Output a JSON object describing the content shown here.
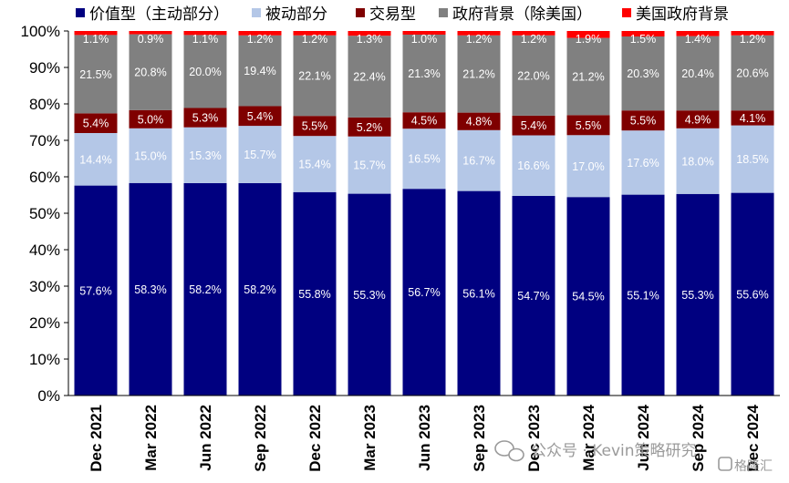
{
  "chart_data": {
    "type": "bar",
    "stacked": true,
    "categories": [
      "Dec 2021",
      "Mar 2022",
      "Jun 2022",
      "Sep 2022",
      "Dec 2022",
      "Mar 2023",
      "Jun 2023",
      "Sep 2023",
      "Dec 2023",
      "Mar 2024",
      "Jun 2024",
      "Sep 2024",
      "Dec 2024"
    ],
    "ylim": [
      0,
      100
    ],
    "yticks": [
      "0%",
      "10%",
      "20%",
      "30%",
      "40%",
      "50%",
      "60%",
      "70%",
      "80%",
      "90%",
      "100%"
    ],
    "legend_position": "top",
    "series": [
      {
        "name": "价值型（主动部分）",
        "color": "#000080",
        "values": [
          57.6,
          58.3,
          58.2,
          58.2,
          55.8,
          55.3,
          56.7,
          56.1,
          54.7,
          54.5,
          55.1,
          55.3,
          55.6
        ],
        "labels": [
          "57.6%",
          "58.3%",
          "58.2%",
          "58.2%",
          "55.8%",
          "55.3%",
          "56.7%",
          "56.1%",
          "54.7%",
          "54.5%",
          "55.1%",
          "55.3%",
          "55.6%"
        ]
      },
      {
        "name": "被动部分",
        "color": "#b4c7e7",
        "values": [
          14.4,
          15.0,
          15.3,
          15.7,
          15.4,
          15.7,
          16.5,
          16.7,
          16.6,
          17.0,
          17.6,
          18.0,
          18.5
        ],
        "labels": [
          "14.4%",
          "15.0%",
          "15.3%",
          "15.7%",
          "15.4%",
          "15.7%",
          "16.5%",
          "16.7%",
          "16.6%",
          "17.0%",
          "17.6%",
          "18.0%",
          "18.5%"
        ]
      },
      {
        "name": "交易型",
        "color": "#7f0000",
        "values": [
          5.4,
          5.0,
          5.3,
          5.4,
          5.5,
          5.2,
          4.5,
          4.8,
          5.4,
          5.5,
          5.5,
          4.9,
          4.1
        ],
        "labels": [
          "5.4%",
          "5.0%",
          "5.3%",
          "5.4%",
          "5.5%",
          "5.2%",
          "4.5%",
          "4.8%",
          "5.4%",
          "5.5%",
          "5.5%",
          "4.9%",
          "4.1%"
        ]
      },
      {
        "name": "政府背景（除美国）",
        "color": "#808080",
        "values": [
          21.5,
          20.8,
          20.0,
          19.4,
          22.1,
          22.4,
          21.3,
          21.2,
          22.0,
          21.2,
          20.3,
          20.4,
          20.6
        ],
        "labels": [
          "21.5%",
          "20.8%",
          "20.0%",
          "19.4%",
          "22.1%",
          "22.4%",
          "21.3%",
          "21.2%",
          "22.0%",
          "21.2%",
          "20.3%",
          "20.4%",
          "20.6%"
        ]
      },
      {
        "name": "美国政府背景",
        "color": "#ff0000",
        "values": [
          1.1,
          0.9,
          1.1,
          1.2,
          1.2,
          1.3,
          1.0,
          1.2,
          1.2,
          1.9,
          1.5,
          1.4,
          1.2
        ],
        "labels": [
          "1.1%",
          "0.9%",
          "1.1%",
          "1.2%",
          "1.2%",
          "1.3%",
          "1.0%",
          "1.2%",
          "1.2%",
          "1.9%",
          "1.5%",
          "1.4%",
          "1.2%"
        ]
      }
    ]
  },
  "watermark": {
    "text": "公众号 · Kevin策略研究",
    "logo_text": "格隆汇"
  }
}
